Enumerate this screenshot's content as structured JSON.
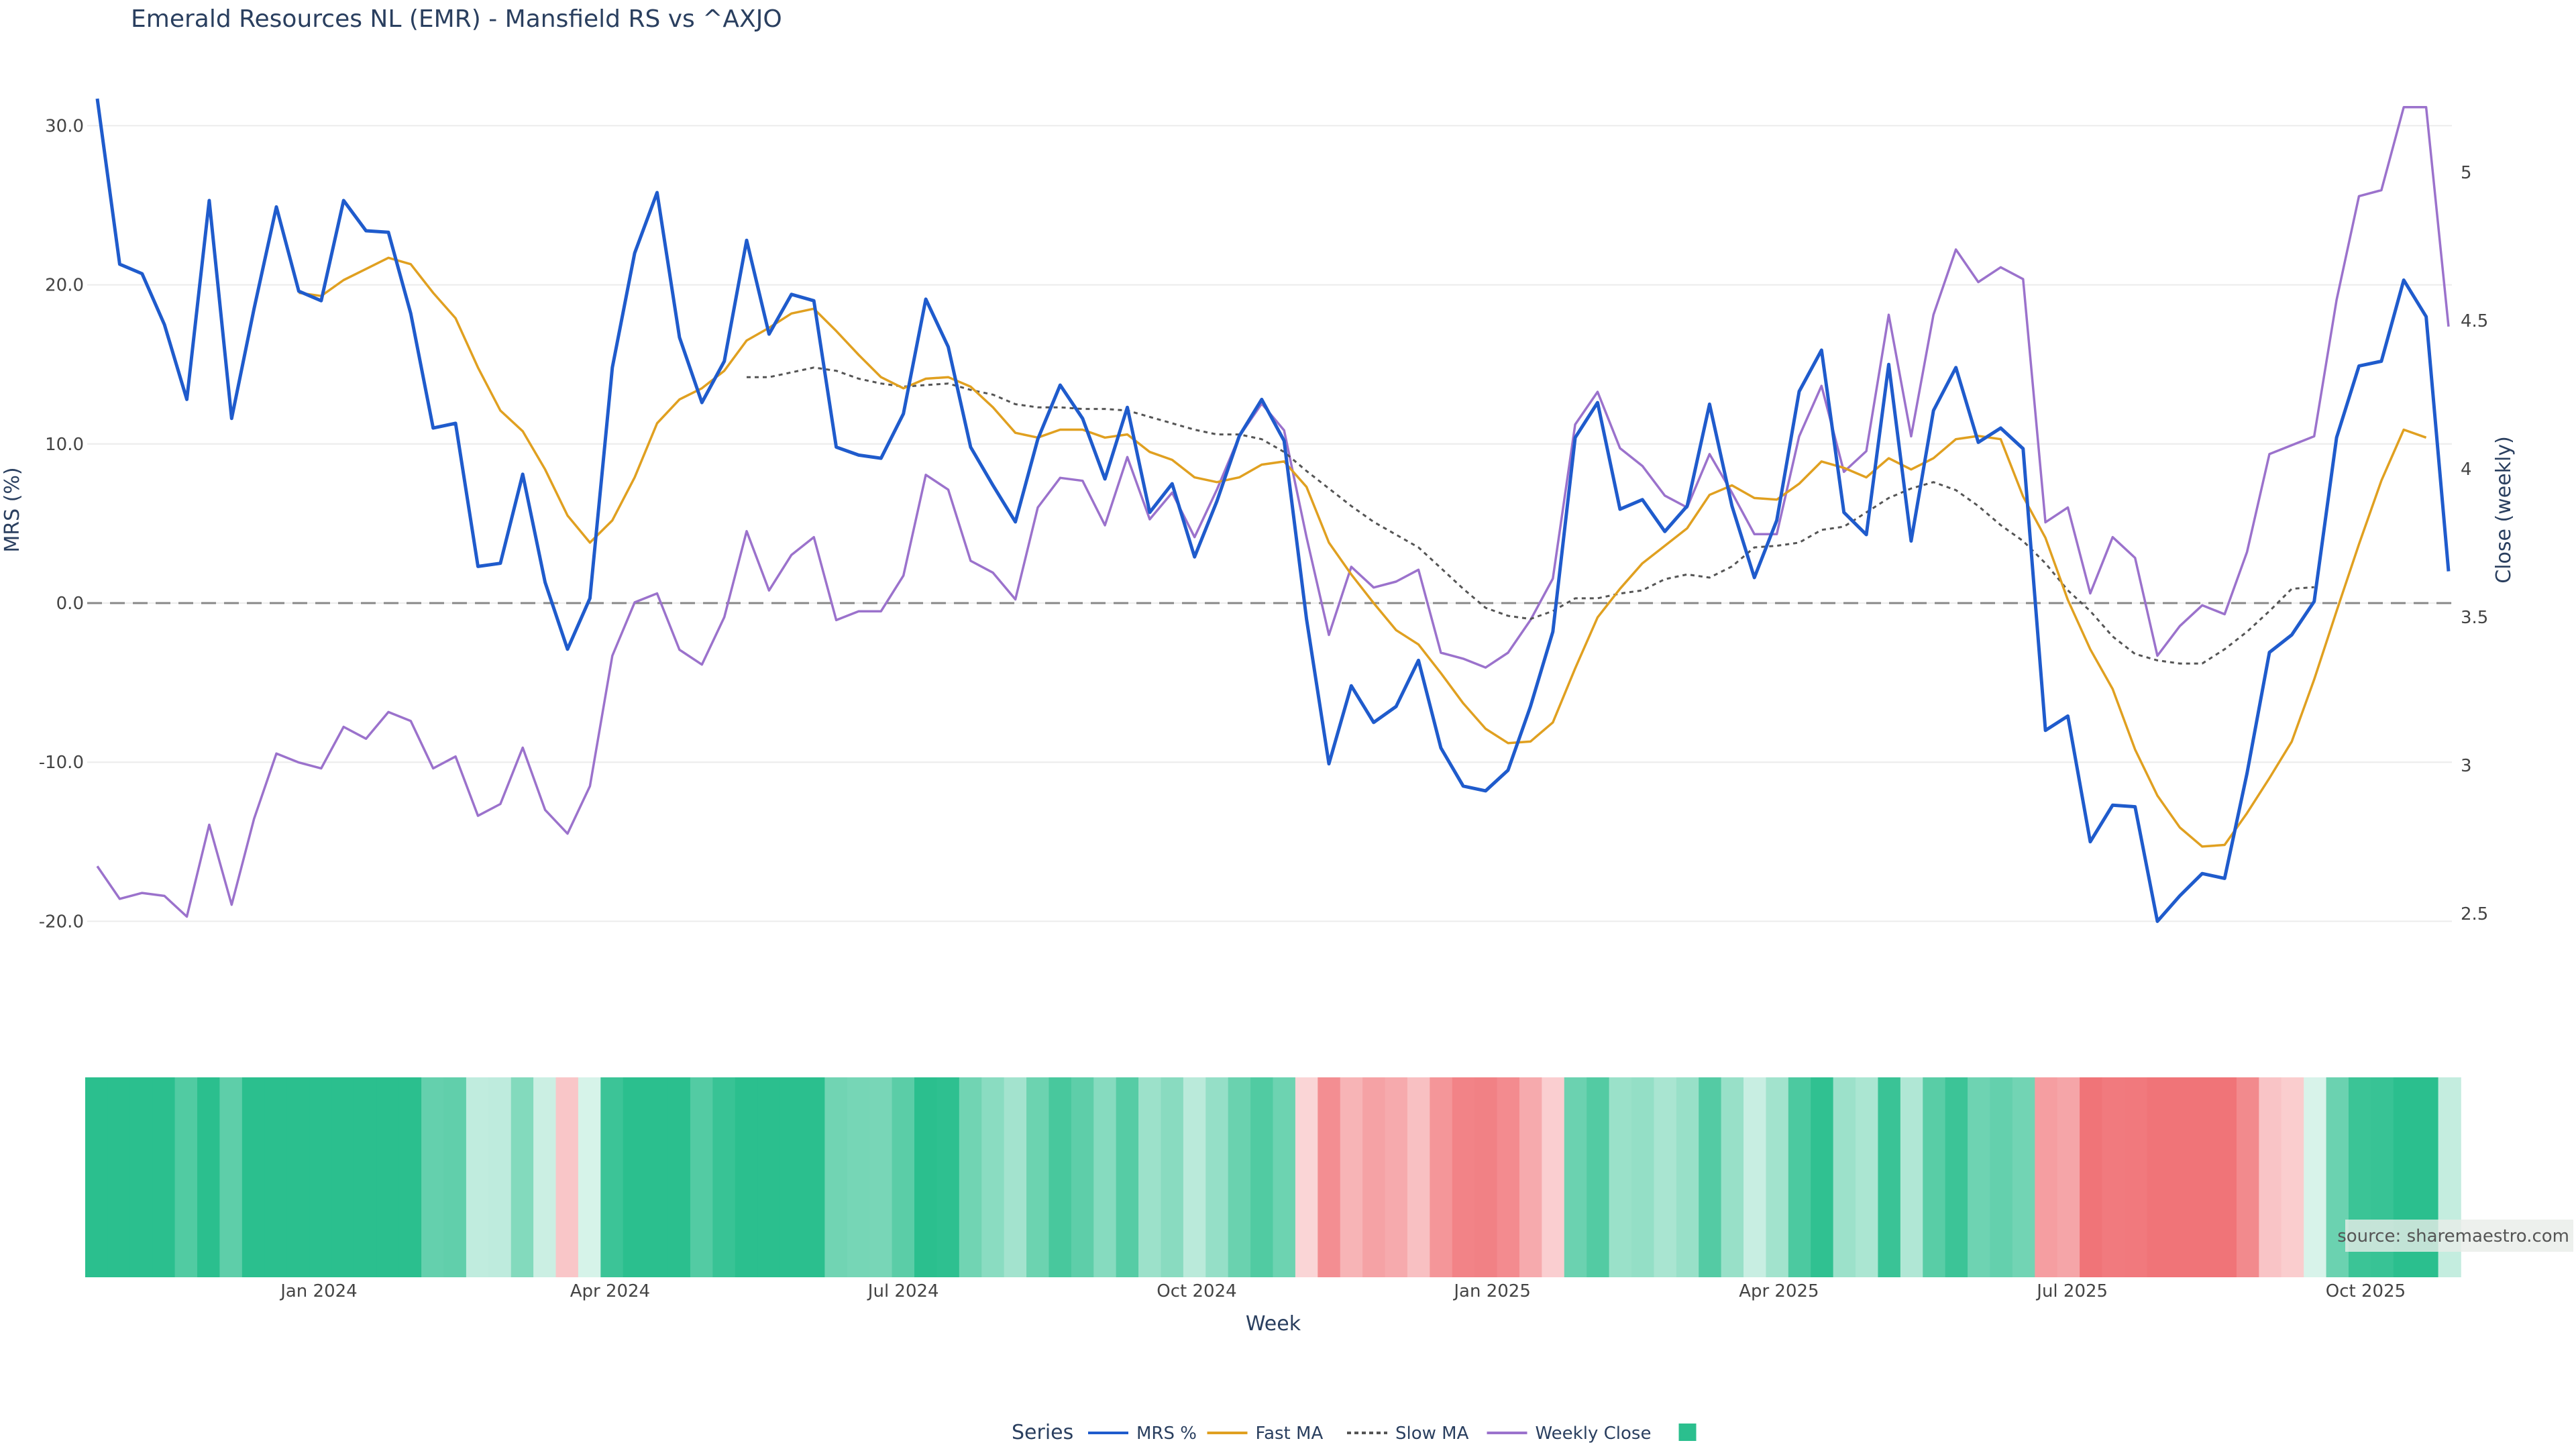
{
  "chart_data": {
    "type": "line",
    "title": "Emerald Resources NL (EMR) - Mansfield RS vs ^AXJO",
    "xlabel": "Week",
    "ylabel_left": "MRS (%)",
    "ylabel_right": "Close (weekly)",
    "y_left_range": [
      -22,
      32
    ],
    "y_left_ticks": [
      -20,
      -10,
      0,
      10,
      20,
      30
    ],
    "y_left_tick_labels": [
      "-20.0",
      "-10.0",
      "0.0",
      "10.0",
      "20.0",
      "30.0"
    ],
    "y_right_range": [
      2.45,
      5.25
    ],
    "y_right_ticks": [
      2.5,
      3,
      3.5,
      4,
      4.5,
      5
    ],
    "y_right_tick_labels": [
      "2.5",
      "3",
      "3.5",
      "4",
      "4.5",
      "5"
    ],
    "x_ticks": [
      {
        "label": "Jan 2024",
        "week": 9.9
      },
      {
        "label": "Apr 2024",
        "week": 22.9
      },
      {
        "label": "Jul 2024",
        "week": 36
      },
      {
        "label": "Oct 2024",
        "week": 49.1
      },
      {
        "label": "Jan 2025",
        "week": 62.3
      },
      {
        "label": "Apr 2025",
        "week": 75.1
      },
      {
        "label": "Jul 2025",
        "week": 88.2
      },
      {
        "label": "Oct 2025",
        "week": 101.3
      }
    ],
    "zero_line": 0,
    "series": [
      {
        "name": "MRS %",
        "axis": "left",
        "color": "#1f5bcc",
        "dash": "solid",
        "values": [
          31.7,
          21.3,
          20.7,
          17.5,
          12.8,
          25.3,
          11.6,
          18.5,
          24.9,
          19.6,
          19,
          25.3,
          23.4,
          23.3,
          18.2,
          11,
          11.3,
          2.3,
          2.5,
          8.1,
          1.3,
          -2.9,
          0.3,
          14.8,
          22,
          25.8,
          16.7,
          12.6,
          15.2,
          22.8,
          16.9,
          19.4,
          19,
          9.8,
          9.3,
          9.1,
          11.9,
          19.1,
          16.1,
          9.8,
          7.4,
          5.1,
          10.3,
          13.7,
          11.6,
          7.8,
          12.3,
          5.7,
          7.5,
          2.9,
          6.4,
          10.5,
          12.8,
          10.2,
          -1,
          -10.1,
          -5.2,
          -7.5,
          -6.5,
          -3.6,
          -9.1,
          -11.5,
          -11.8,
          -10.5,
          -6.5,
          -1.8,
          10.4,
          12.6,
          5.9,
          6.5,
          4.5,
          6.1,
          12.5,
          6.1,
          1.6,
          5.2,
          13.3,
          15.9,
          5.7,
          4.3,
          15,
          3.9,
          12.1,
          14.8,
          10.1,
          11,
          9.7,
          -8,
          -7.1,
          -15,
          -12.7,
          -12.8,
          -20,
          -18.4,
          -17,
          -17.3,
          -10.7,
          -3.1,
          -2,
          0.1,
          10.4,
          14.9,
          15.2,
          20.3,
          18,
          2
        ]
      },
      {
        "name": "Fast MA",
        "axis": "left",
        "color": "#e0a020",
        "dash": "solid",
        "start_week": 9,
        "values": [
          19.5,
          19.3,
          20.3,
          21,
          21.7,
          21.3,
          19.5,
          17.9,
          14.8,
          12.1,
          10.8,
          8.4,
          5.5,
          3.8,
          5.2,
          7.9,
          11.3,
          12.8,
          13.5,
          14.6,
          16.5,
          17.3,
          18.2,
          18.5,
          17.1,
          15.6,
          14.2,
          13.5,
          14.1,
          14.2,
          13.6,
          12.3,
          10.7,
          10.4,
          10.9,
          10.9,
          10.4,
          10.6,
          9.5,
          9,
          7.9,
          7.6,
          7.9,
          8.7,
          8.9,
          7.3,
          3.8,
          1.8,
          0,
          -1.7,
          -2.6,
          -4.4,
          -6.3,
          -7.9,
          -8.8,
          -8.7,
          -7.5,
          -4.1,
          -0.9,
          0.9,
          2.5,
          3.6,
          4.7,
          6.8,
          7.4,
          6.6,
          6.5,
          7.5,
          8.9,
          8.5,
          7.9,
          9.1,
          8.4,
          9.1,
          10.3,
          10.5,
          10.3,
          6.7,
          4.1,
          0.2,
          -2.9,
          -5.4,
          -9.2,
          -12.1,
          -14.1,
          -15.3,
          -15.2,
          -13.2,
          -11,
          -8.7,
          -4.8,
          -0.5,
          3.7,
          7.7,
          10.9,
          10.4
        ]
      },
      {
        "name": "Slow MA",
        "axis": "left",
        "color": "#555555",
        "dash": "dotted",
        "start_week": 29,
        "values": [
          14.2,
          14.2,
          14.5,
          14.8,
          14.6,
          14.1,
          13.8,
          13.6,
          13.7,
          13.8,
          13.4,
          13.1,
          12.5,
          12.3,
          12.3,
          12.2,
          12.2,
          12.1,
          11.7,
          11.3,
          10.9,
          10.6,
          10.6,
          10.3,
          9.5,
          8.3,
          7.2,
          6.1,
          5.1,
          4.3,
          3.5,
          2.2,
          0.9,
          -0.3,
          -0.8,
          -1,
          -0.5,
          0.3,
          0.3,
          0.6,
          0.8,
          1.5,
          1.8,
          1.6,
          2.3,
          3.5,
          3.6,
          3.8,
          4.6,
          4.8,
          5.7,
          6.6,
          7.2,
          7.6,
          7.1,
          6.1,
          4.9,
          3.9,
          2.5,
          0.8,
          -0.5,
          -2.1,
          -3.2,
          -3.6,
          -3.8,
          -3.8,
          -2.9,
          -1.8,
          -0.5,
          0.9,
          1
        ]
      },
      {
        "name": "Weekly Close",
        "axis": "right",
        "color": "#9b72cc",
        "dash": "solid",
        "values": [
          2.66,
          2.55,
          2.57,
          2.56,
          2.49,
          2.8,
          2.53,
          2.82,
          3.04,
          3.01,
          2.99,
          3.13,
          3.09,
          3.18,
          3.15,
          2.99,
          3.03,
          2.83,
          2.87,
          3.06,
          2.85,
          2.77,
          2.93,
          3.37,
          3.55,
          3.58,
          3.39,
          3.34,
          3.5,
          3.79,
          3.59,
          3.71,
          3.77,
          3.49,
          3.52,
          3.52,
          3.64,
          3.98,
          3.93,
          3.69,
          3.65,
          3.56,
          3.87,
          3.97,
          3.96,
          3.81,
          4.04,
          3.83,
          3.92,
          3.77,
          3.93,
          4.11,
          4.22,
          4.13,
          3.77,
          3.44,
          3.67,
          3.6,
          3.62,
          3.66,
          3.38,
          3.36,
          3.33,
          3.38,
          3.49,
          3.63,
          4.15,
          4.26,
          4.07,
          4.01,
          3.91,
          3.87,
          4.05,
          3.92,
          3.78,
          3.78,
          4.11,
          4.28,
          3.99,
          4.06,
          4.52,
          4.11,
          4.52,
          4.74,
          4.63,
          4.68,
          4.64,
          3.82,
          3.87,
          3.58,
          3.77,
          3.7,
          3.37,
          3.47,
          3.54,
          3.51,
          3.72,
          4.05,
          4.08,
          4.11,
          4.57,
          4.92,
          4.94,
          5.22,
          5.22,
          4.48
        ]
      }
    ],
    "heatmap": {
      "description_bins": "one cell per week, color encodes MRS sign/strength",
      "positive_color": "#2bbf8e",
      "negative_color": "#f07478",
      "values": [
        31.7,
        21.3,
        20.7,
        17.5,
        12.8,
        25.3,
        11.6,
        18.5,
        24.9,
        19.6,
        19,
        25.3,
        23.4,
        23.3,
        18.2,
        11,
        11.3,
        2.3,
        2.5,
        8.1,
        1.3,
        -2.9,
        0.3,
        14.8,
        22,
        25.8,
        16.7,
        12.6,
        15.2,
        22.8,
        16.9,
        19.4,
        19,
        9.8,
        9.3,
        9.1,
        11.9,
        19.1,
        16.1,
        9.8,
        7.4,
        5.1,
        10.3,
        13.7,
        11.6,
        7.8,
        12.3,
        5.7,
        7.5,
        2.9,
        6.4,
        10.5,
        12.8,
        10.2,
        -1,
        -10.1,
        -5.2,
        -7.5,
        -6.5,
        -3.6,
        -9.1,
        -11.5,
        -11.8,
        -10.5,
        -6.5,
        -1.8,
        10.4,
        12.6,
        5.9,
        6.5,
        4.5,
        6.1,
        12.5,
        6.1,
        1.6,
        5.2,
        13.3,
        15.9,
        5.7,
        4.3,
        15,
        3.9,
        12.1,
        14.8,
        10.1,
        11,
        9.7,
        -8,
        -7.1,
        -15,
        -12.7,
        -12.8,
        -20,
        -18.4,
        -17,
        -17.3,
        -10.7,
        -3.1,
        -2,
        0.1,
        10.4,
        14.9,
        15.2,
        20.3,
        18,
        2
      ]
    },
    "legend": {
      "title": "Series",
      "placement": "bottom-center",
      "items": [
        {
          "label": "MRS %",
          "color": "#1f5bcc",
          "dash": "solid",
          "kind": "line"
        },
        {
          "label": "Fast MA",
          "color": "#e0a020",
          "dash": "solid",
          "kind": "line"
        },
        {
          "label": "Slow MA",
          "color": "#555555",
          "dash": "dotted",
          "kind": "line"
        },
        {
          "label": "Weekly Close",
          "color": "#9b72cc",
          "dash": "solid",
          "kind": "line"
        },
        {
          "label": "",
          "color": "#2bbf8e",
          "kind": "square"
        }
      ]
    },
    "grid": true,
    "source_note": "source: sharemaestro.com"
  }
}
